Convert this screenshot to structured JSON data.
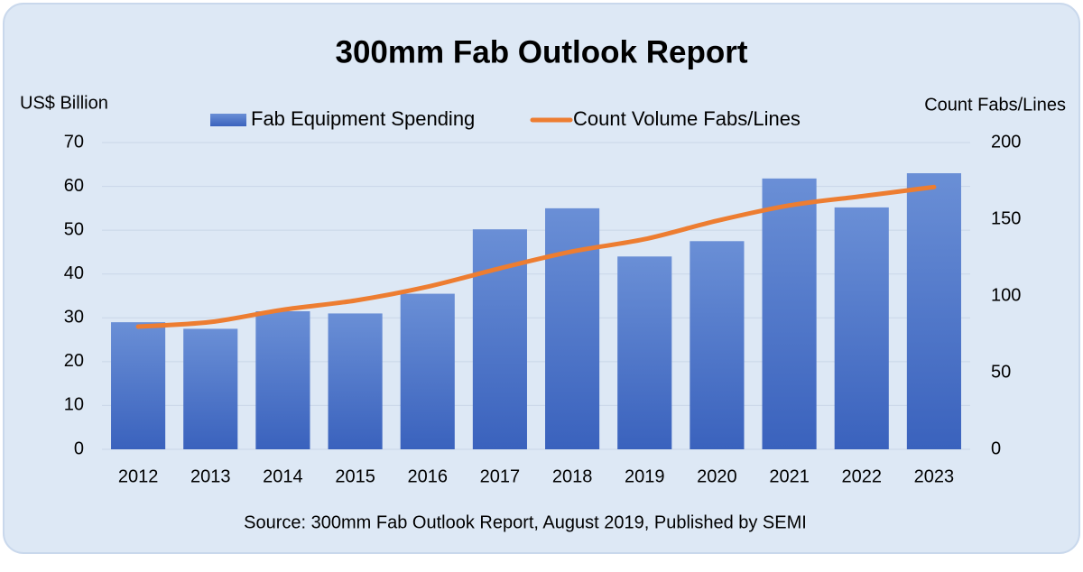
{
  "chart_data": {
    "type": "bar-line",
    "title": "300mm Fab Outlook Report",
    "y_label": "US$ Billion",
    "y2_label": "Count Fabs/Lines",
    "source": "Source: 300mm Fab Outlook Report, August 2019, Published by SEMI",
    "categories": [
      "2012",
      "2013",
      "2014",
      "2015",
      "2016",
      "2017",
      "2018",
      "2019",
      "2020",
      "2021",
      "2022",
      "2023"
    ],
    "series": [
      {
        "name": "Fab Equipment Spending",
        "type": "bar",
        "color": "#4472c4",
        "values": [
          29,
          27.5,
          31.5,
          31,
          35.5,
          50.2,
          55,
          44,
          47.5,
          61.8,
          55.2,
          63
        ]
      },
      {
        "name": "Count Volume Fabs/Lines",
        "type": "line",
        "axis": "y2",
        "color": "#ed7d31",
        "values": [
          80,
          83,
          91,
          97,
          106,
          118,
          129,
          137,
          149,
          159,
          165,
          171
        ]
      }
    ],
    "ylim": [
      0,
      70
    ],
    "yticks": [
      0,
      10,
      20,
      30,
      40,
      50,
      60,
      70
    ],
    "y2lim": [
      0,
      200
    ],
    "y2ticks": [
      0,
      50,
      100,
      150,
      200
    ],
    "grid": true,
    "legend": "top"
  }
}
